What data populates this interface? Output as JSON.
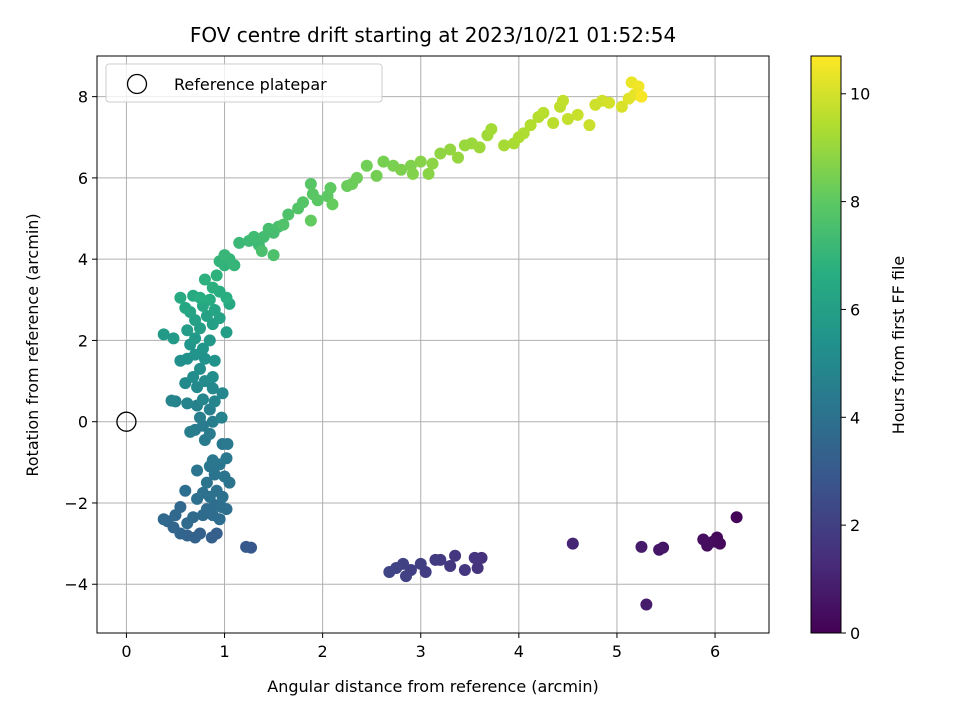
{
  "chart_data": {
    "type": "scatter",
    "title": "FOV centre drift starting at 2023/10/21 01:52:54",
    "xlabel": "Angular distance from reference (arcmin)",
    "ylabel": "Rotation from reference (arcmin)",
    "xlim": [
      -0.3,
      6.55
    ],
    "ylim": [
      -5.2,
      9.0
    ],
    "xticks": [
      0,
      1,
      2,
      3,
      4,
      5,
      6
    ],
    "yticks": [
      -4,
      -2,
      0,
      2,
      4,
      6,
      8
    ],
    "grid": true,
    "legend": {
      "position": "top-left",
      "entries": [
        "Reference platepar"
      ]
    },
    "reference_point": {
      "x": 0,
      "y": 0,
      "label": "Reference platepar"
    },
    "colorbar": {
      "label": "Hours from first FF file",
      "range": [
        0,
        10.7
      ],
      "ticks": [
        0,
        2,
        4,
        6,
        8,
        10
      ],
      "colormap": "viridis"
    },
    "series": [
      {
        "points": [
          [
            6.22,
            -2.35,
            0.1
          ],
          [
            6.02,
            -2.85,
            0.2
          ],
          [
            5.98,
            -2.95,
            0.3
          ],
          [
            6.05,
            -3.0,
            0.25
          ],
          [
            5.92,
            -3.05,
            0.35
          ],
          [
            5.88,
            -2.9,
            0.4
          ],
          [
            5.47,
            -3.1,
            0.6
          ],
          [
            5.43,
            -3.15,
            0.65
          ],
          [
            5.25,
            -3.08,
            0.8
          ],
          [
            5.3,
            -4.5,
            0.85
          ],
          [
            4.55,
            -3.0,
            1.1
          ],
          [
            3.62,
            -3.35,
            1.5
          ],
          [
            3.58,
            -3.6,
            1.55
          ],
          [
            3.55,
            -3.35,
            1.6
          ],
          [
            3.45,
            -3.65,
            1.65
          ],
          [
            3.35,
            -3.3,
            1.7
          ],
          [
            3.3,
            -3.55,
            1.75
          ],
          [
            3.2,
            -3.4,
            1.8
          ],
          [
            3.15,
            -3.4,
            1.85
          ],
          [
            3.05,
            -3.7,
            1.9
          ],
          [
            3.0,
            -3.5,
            1.95
          ],
          [
            2.9,
            -3.65,
            2.0
          ],
          [
            2.85,
            -3.8,
            2.05
          ],
          [
            2.82,
            -3.5,
            2.1
          ],
          [
            2.75,
            -3.6,
            2.15
          ],
          [
            2.68,
            -3.7,
            2.2
          ],
          [
            1.27,
            -3.1,
            2.9
          ],
          [
            1.22,
            -3.08,
            2.95
          ],
          [
            0.92,
            -2.75,
            3.2
          ],
          [
            0.87,
            -2.85,
            3.25
          ],
          [
            0.75,
            -2.75,
            3.3
          ],
          [
            0.7,
            -2.85,
            3.35
          ],
          [
            0.62,
            -2.8,
            3.4
          ],
          [
            0.55,
            -2.75,
            3.45
          ],
          [
            0.48,
            -2.6,
            3.5
          ],
          [
            0.42,
            -2.45,
            3.55
          ],
          [
            0.38,
            -2.4,
            3.6
          ],
          [
            0.5,
            -2.3,
            3.62
          ],
          [
            0.55,
            -2.1,
            3.65
          ],
          [
            0.62,
            -2.5,
            3.68
          ],
          [
            0.68,
            -2.35,
            3.7
          ],
          [
            0.78,
            -2.3,
            3.72
          ],
          [
            0.82,
            -2.15,
            3.75
          ],
          [
            0.88,
            -2.3,
            3.78
          ],
          [
            0.9,
            -2.05,
            3.8
          ],
          [
            0.95,
            -2.4,
            3.82
          ],
          [
            0.97,
            -2.1,
            3.85
          ],
          [
            1.02,
            -2.15,
            3.87
          ],
          [
            0.6,
            -1.7,
            3.9
          ],
          [
            0.72,
            -1.9,
            3.92
          ],
          [
            0.78,
            -1.75,
            3.95
          ],
          [
            0.85,
            -1.85,
            3.97
          ],
          [
            0.92,
            -1.7,
            4.0
          ],
          [
            0.98,
            -1.85,
            4.02
          ],
          [
            1.05,
            -1.5,
            4.05
          ],
          [
            0.82,
            -1.5,
            4.07
          ],
          [
            0.9,
            -1.3,
            4.1
          ],
          [
            1.0,
            -1.35,
            4.12
          ],
          [
            0.72,
            -1.2,
            4.15
          ],
          [
            0.85,
            -1.1,
            4.17
          ],
          [
            0.95,
            -1.05,
            4.2
          ],
          [
            0.88,
            -0.95,
            4.22
          ],
          [
            1.02,
            -0.9,
            4.25
          ],
          [
            0.98,
            -0.55,
            4.27
          ],
          [
            1.03,
            -0.55,
            4.3
          ],
          [
            0.8,
            -0.45,
            4.35
          ],
          [
            0.85,
            -0.3,
            4.4
          ],
          [
            0.7,
            -0.2,
            4.42
          ],
          [
            0.78,
            -0.1,
            4.45
          ],
          [
            0.65,
            -0.25,
            4.47
          ],
          [
            0.88,
            0.0,
            4.5
          ],
          [
            0.75,
            0.1,
            4.55
          ],
          [
            0.85,
            0.3,
            4.6
          ],
          [
            0.72,
            0.4,
            4.65
          ],
          [
            0.97,
            0.1,
            4.7
          ],
          [
            0.5,
            0.5,
            4.75
          ],
          [
            0.46,
            0.52,
            4.77
          ],
          [
            0.62,
            0.45,
            4.8
          ],
          [
            0.78,
            0.55,
            4.82
          ],
          [
            0.9,
            0.5,
            4.85
          ],
          [
            0.98,
            0.7,
            4.9
          ],
          [
            0.88,
            0.82,
            4.95
          ],
          [
            0.72,
            0.85,
            5.0
          ],
          [
            0.6,
            0.95,
            5.05
          ],
          [
            0.8,
            1.0,
            5.1
          ],
          [
            0.68,
            1.1,
            5.15
          ],
          [
            0.88,
            1.1,
            5.2
          ],
          [
            0.75,
            1.3,
            5.25
          ],
          [
            0.55,
            1.5,
            5.3
          ],
          [
            0.62,
            1.55,
            5.35
          ],
          [
            0.8,
            1.55,
            5.4
          ],
          [
            0.9,
            1.5,
            5.45
          ],
          [
            0.7,
            1.65,
            5.5
          ],
          [
            0.78,
            1.8,
            5.55
          ],
          [
            0.65,
            1.9,
            5.6
          ],
          [
            0.85,
            2.0,
            5.65
          ],
          [
            0.7,
            2.05,
            5.7
          ],
          [
            0.38,
            2.15,
            5.75
          ],
          [
            0.48,
            2.05,
            5.8
          ],
          [
            0.62,
            2.25,
            5.85
          ],
          [
            1.02,
            2.2,
            5.9
          ],
          [
            0.75,
            2.3,
            5.95
          ],
          [
            0.88,
            2.4,
            6.0
          ],
          [
            0.7,
            2.5,
            6.05
          ],
          [
            0.95,
            2.55,
            6.1
          ],
          [
            0.82,
            2.6,
            6.15
          ],
          [
            0.65,
            2.7,
            6.2
          ],
          [
            0.9,
            2.75,
            6.25
          ],
          [
            0.78,
            2.85,
            6.3
          ],
          [
            0.6,
            2.8,
            6.35
          ],
          [
            1.05,
            2.9,
            6.4
          ],
          [
            0.55,
            3.05,
            6.45
          ],
          [
            0.68,
            3.1,
            6.5
          ],
          [
            0.85,
            3.0,
            6.55
          ],
          [
            0.75,
            3.05,
            6.6
          ],
          [
            0.95,
            3.2,
            6.65
          ],
          [
            1.02,
            3.05,
            6.7
          ],
          [
            0.88,
            3.3,
            6.75
          ],
          [
            0.8,
            3.5,
            6.8
          ],
          [
            0.92,
            3.6,
            6.85
          ],
          [
            1.0,
            3.85,
            6.9
          ],
          [
            0.95,
            3.95,
            6.95
          ],
          [
            1.05,
            4.0,
            7.0
          ],
          [
            1.1,
            3.85,
            7.05
          ],
          [
            1.0,
            4.1,
            7.1
          ],
          [
            1.15,
            4.4,
            7.15
          ],
          [
            1.25,
            4.45,
            7.2
          ],
          [
            1.35,
            4.35,
            7.25
          ],
          [
            1.3,
            4.55,
            7.3
          ],
          [
            1.4,
            4.55,
            7.35
          ],
          [
            1.5,
            4.65,
            7.4
          ],
          [
            1.45,
            4.75,
            7.45
          ],
          [
            1.55,
            4.8,
            7.5
          ],
          [
            1.38,
            4.2,
            7.55
          ],
          [
            1.5,
            4.1,
            7.6
          ],
          [
            1.65,
            5.1,
            7.65
          ],
          [
            1.6,
            4.85,
            7.7
          ],
          [
            1.75,
            5.25,
            7.75
          ],
          [
            1.8,
            5.4,
            7.8
          ],
          [
            1.88,
            5.85,
            7.85
          ],
          [
            1.9,
            5.6,
            7.9
          ],
          [
            1.95,
            5.45,
            7.95
          ],
          [
            2.05,
            5.55,
            8.0
          ],
          [
            2.08,
            5.75,
            8.05
          ],
          [
            1.88,
            4.95,
            8.1
          ],
          [
            2.1,
            5.35,
            8.15
          ],
          [
            2.25,
            5.8,
            8.2
          ],
          [
            2.3,
            5.85,
            8.25
          ],
          [
            2.35,
            6.0,
            8.3
          ],
          [
            2.45,
            6.3,
            8.35
          ],
          [
            2.55,
            6.05,
            8.4
          ],
          [
            2.62,
            6.4,
            8.45
          ],
          [
            2.72,
            6.3,
            8.5
          ],
          [
            2.8,
            6.2,
            8.55
          ],
          [
            2.9,
            6.3,
            8.6
          ],
          [
            2.92,
            6.1,
            8.65
          ],
          [
            3.0,
            6.4,
            8.7
          ],
          [
            3.08,
            6.1,
            8.75
          ],
          [
            3.12,
            6.35,
            8.8
          ],
          [
            3.2,
            6.6,
            8.85
          ],
          [
            3.3,
            6.7,
            8.9
          ],
          [
            3.38,
            6.5,
            8.95
          ],
          [
            3.45,
            6.8,
            9.0
          ],
          [
            3.52,
            6.85,
            9.05
          ],
          [
            3.6,
            6.75,
            9.1
          ],
          [
            3.68,
            7.05,
            9.15
          ],
          [
            3.72,
            7.2,
            9.2
          ],
          [
            3.85,
            6.8,
            9.25
          ],
          [
            3.95,
            6.85,
            9.3
          ],
          [
            4.0,
            7.0,
            9.35
          ],
          [
            4.05,
            7.1,
            9.4
          ],
          [
            4.12,
            7.3,
            9.45
          ],
          [
            4.2,
            7.5,
            9.5
          ],
          [
            4.25,
            7.6,
            9.55
          ],
          [
            4.35,
            7.35,
            9.6
          ],
          [
            4.42,
            7.75,
            9.65
          ],
          [
            4.45,
            7.9,
            9.7
          ],
          [
            4.5,
            7.45,
            9.75
          ],
          [
            4.6,
            7.55,
            9.8
          ],
          [
            4.72,
            7.3,
            9.85
          ],
          [
            4.78,
            7.8,
            9.9
          ],
          [
            4.85,
            7.9,
            9.95
          ],
          [
            4.92,
            7.85,
            10.0
          ],
          [
            5.05,
            7.75,
            10.1
          ],
          [
            5.12,
            7.95,
            10.2
          ],
          [
            5.18,
            8.05,
            10.3
          ],
          [
            5.15,
            8.35,
            10.4
          ],
          [
            5.22,
            8.25,
            10.5
          ],
          [
            5.25,
            8.0,
            10.6
          ]
        ]
      }
    ]
  }
}
